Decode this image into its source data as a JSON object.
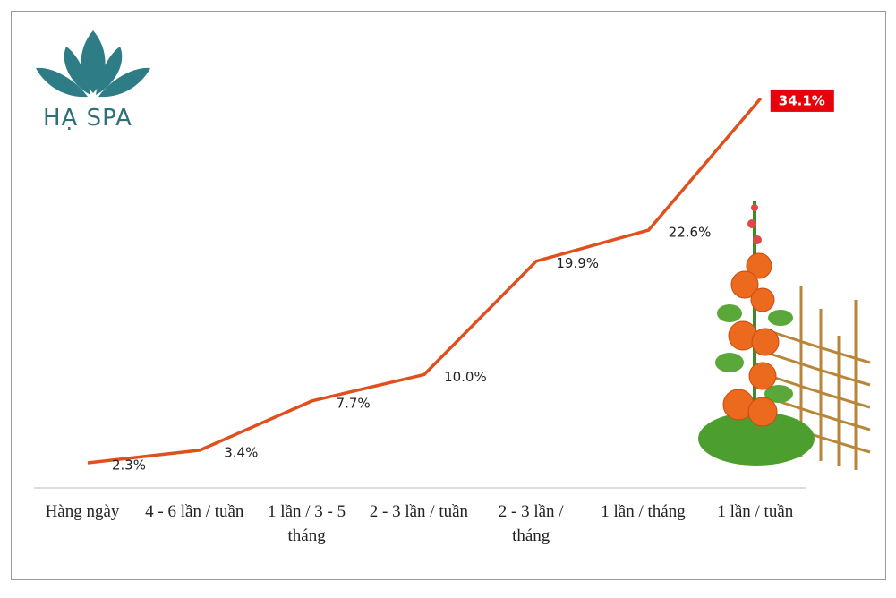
{
  "logo": "HẠ SPA",
  "chart_data": {
    "type": "line",
    "categories": [
      "Hàng ngày",
      "4 - 6 lần / tuần",
      "1 lần  / 3 - 5 tháng",
      "2 - 3 lần / tuần",
      "2 - 3 lần / tháng",
      "1 lần  / tháng",
      "1 lần  / tuần"
    ],
    "values": [
      2.3,
      3.4,
      7.7,
      10.0,
      19.9,
      22.6,
      34.1
    ],
    "value_labels": [
      "2.3%",
      "3.4%",
      "7.7%",
      "10.0%",
      "19.9%",
      "22.6%",
      "34.1%"
    ],
    "color": "#e0501e",
    "highlight_color": "#e8000b"
  }
}
